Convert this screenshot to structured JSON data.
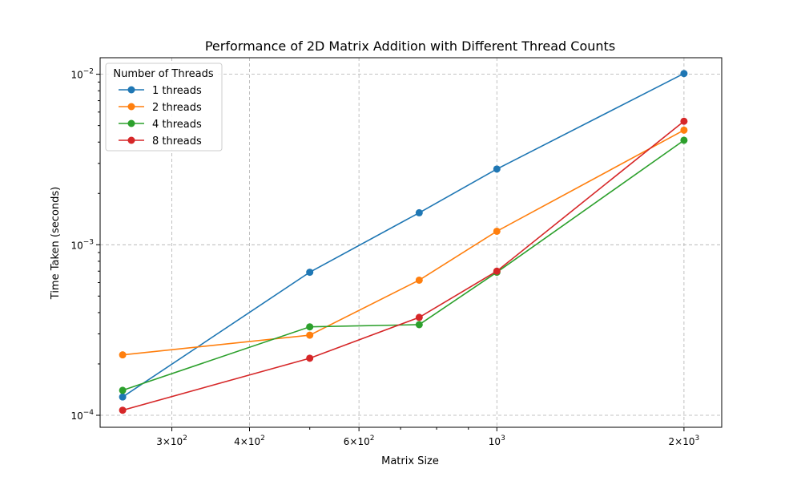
{
  "chart_data": {
    "type": "line",
    "title": "Performance of 2D Matrix Addition with Different Thread Counts",
    "xlabel": "Matrix Size",
    "ylabel": "Time Taken (seconds)",
    "xscale": "log",
    "yscale": "log",
    "xlim": [
      230,
      2300
    ],
    "ylim": [
      8.5e-05,
      0.0125
    ],
    "grid": true,
    "legend": {
      "title": "Number of Threads",
      "placement": "top-left"
    },
    "x": [
      250,
      500,
      750,
      1000,
      2000
    ],
    "x_major_ticks": [
      {
        "value": 300,
        "mant": "3",
        "exp": "2"
      },
      {
        "value": 400,
        "mant": "4",
        "exp": "2"
      },
      {
        "value": 600,
        "mant": "6",
        "exp": "2"
      },
      {
        "value": 1000,
        "mant": "",
        "exp": "3"
      },
      {
        "value": 2000,
        "mant": "2",
        "exp": "3"
      }
    ],
    "y_major_ticks": [
      {
        "value": 0.0001,
        "exp": "−4"
      },
      {
        "value": 0.001,
        "exp": "−3"
      },
      {
        "value": 0.01,
        "exp": "−2"
      }
    ],
    "series": [
      {
        "name": "1 threads",
        "color": "#1f77b4",
        "values": [
          0.000128,
          0.00069,
          0.00154,
          0.00278,
          0.0101
        ]
      },
      {
        "name": "2 threads",
        "color": "#ff7f0e",
        "values": [
          0.000226,
          0.000295,
          0.00062,
          0.0012,
          0.0047
        ]
      },
      {
        "name": "4 threads",
        "color": "#2ca02c",
        "values": [
          0.00014,
          0.00033,
          0.00034,
          0.00069,
          0.0041
        ]
      },
      {
        "name": "8 threads",
        "color": "#d62728",
        "values": [
          0.000107,
          0.000216,
          0.000375,
          0.0007,
          0.0053
        ]
      }
    ]
  }
}
